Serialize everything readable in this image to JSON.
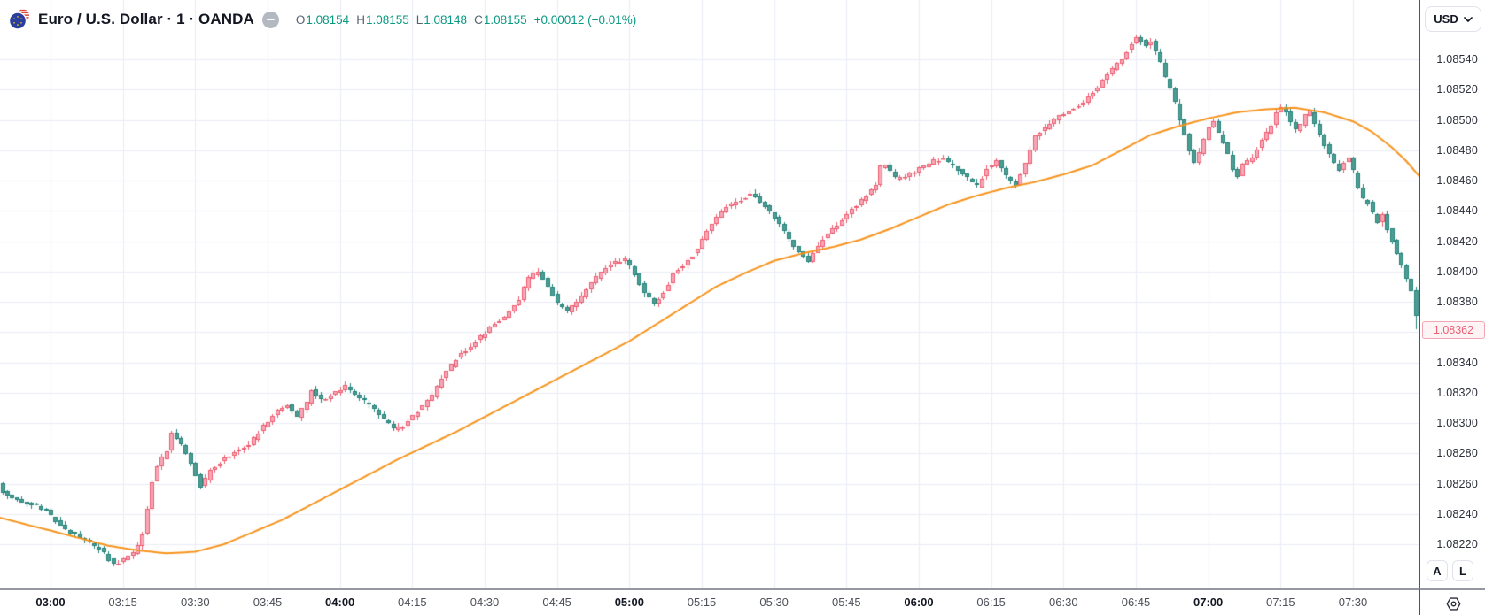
{
  "header": {
    "symbol_title": "Euro / U.S. Dollar · 1 · OANDA",
    "ohlc": {
      "open_label": "O",
      "open": "1.08154",
      "high_label": "H",
      "high": "1.08155",
      "low_label": "L",
      "low": "1.08148",
      "close_label": "C",
      "close": "1.08155",
      "change": "+0.00012 (+0.01%)"
    }
  },
  "price_axis": {
    "currency": "USD",
    "labels": [
      "1.08540",
      "1.08520",
      "1.08500",
      "1.08480",
      "1.08460",
      "1.08440",
      "1.08420",
      "1.08400",
      "1.08380",
      "1.08340",
      "1.08320",
      "1.08300",
      "1.08280",
      "1.08260",
      "1.08240",
      "1.08220"
    ],
    "last_price": "1.08362"
  },
  "time_axis": {
    "labels": [
      {
        "text": "03:00",
        "minutes": 180,
        "bold": true
      },
      {
        "text": "03:15",
        "minutes": 195,
        "bold": false
      },
      {
        "text": "03:30",
        "minutes": 210,
        "bold": false
      },
      {
        "text": "03:45",
        "minutes": 225,
        "bold": false
      },
      {
        "text": "04:00",
        "minutes": 240,
        "bold": true
      },
      {
        "text": "04:15",
        "minutes": 255,
        "bold": false
      },
      {
        "text": "04:30",
        "minutes": 270,
        "bold": false
      },
      {
        "text": "04:45",
        "minutes": 285,
        "bold": false
      },
      {
        "text": "05:00",
        "minutes": 300,
        "bold": true
      },
      {
        "text": "05:15",
        "minutes": 315,
        "bold": false
      },
      {
        "text": "05:30",
        "minutes": 330,
        "bold": false
      },
      {
        "text": "05:45",
        "minutes": 345,
        "bold": false
      },
      {
        "text": "06:00",
        "minutes": 360,
        "bold": true
      },
      {
        "text": "06:15",
        "minutes": 375,
        "bold": false
      },
      {
        "text": "06:30",
        "minutes": 390,
        "bold": false
      },
      {
        "text": "06:45",
        "minutes": 405,
        "bold": false
      },
      {
        "text": "07:00",
        "minutes": 420,
        "bold": true
      },
      {
        "text": "07:15",
        "minutes": 435,
        "bold": false
      },
      {
        "text": "07:30",
        "minutes": 450,
        "bold": false
      }
    ]
  },
  "toolbar": {
    "auto_label": "A",
    "log_label": "L"
  },
  "colors": {
    "background": "#ffffff",
    "grid": "#e9eef6",
    "up_fill": "#f6a8b6",
    "up_border": "#ee5e72",
    "down_fill": "#4d9d94",
    "down_border": "#26847b",
    "ma_line": "#f7941d",
    "ohlc_value": "#089981",
    "last_price_text": "#ee5e72",
    "last_price_bg": "#fef3f5",
    "last_price_border": "#f3a7b4"
  },
  "chart_data": {
    "type": "candlestick",
    "title": "Euro / U.S. Dollar, 1 minute, OANDA",
    "x_unit": "minutes_since_midnight",
    "x_range": [
      169,
      464
    ],
    "y_range": [
      1.0819,
      1.08575
    ],
    "price_tick_step": 0.0002,
    "price_ticks_min": 1.0822,
    "price_ticks_max": 1.0854,
    "time_ticks": [
      180,
      195,
      210,
      225,
      240,
      255,
      270,
      285,
      300,
      315,
      330,
      345,
      360,
      375,
      390,
      405,
      420,
      435,
      450
    ],
    "last_price": 1.08362,
    "seed": 42,
    "series": [
      {
        "name": "EUR/USD 1m candles",
        "style": "candles"
      },
      {
        "name": "moving average",
        "style": "line",
        "color": "#f7941d"
      }
    ],
    "price_path_anchors": [
      [
        169,
        1.08268
      ],
      [
        171,
        1.08254
      ],
      [
        174,
        1.08249
      ],
      [
        178,
        1.08246
      ],
      [
        180,
        1.08242
      ],
      [
        183,
        1.08232
      ],
      [
        186,
        1.08226
      ],
      [
        189,
        1.08221
      ],
      [
        192,
        1.08214
      ],
      [
        194,
        1.08206
      ],
      [
        196,
        1.0821
      ],
      [
        198,
        1.08214
      ],
      [
        200,
        1.08226
      ],
      [
        201,
        1.08244
      ],
      [
        202,
        1.08262
      ],
      [
        203,
        1.08272
      ],
      [
        205,
        1.08282
      ],
      [
        206,
        1.08294
      ],
      [
        208,
        1.08286
      ],
      [
        210,
        1.08274
      ],
      [
        212,
        1.08258
      ],
      [
        214,
        1.08268
      ],
      [
        217,
        1.08277
      ],
      [
        220,
        1.08282
      ],
      [
        222,
        1.08286
      ],
      [
        225,
        1.08298
      ],
      [
        228,
        1.08308
      ],
      [
        230,
        1.08312
      ],
      [
        232,
        1.08304
      ],
      [
        234,
        1.08314
      ],
      [
        235,
        1.08322
      ],
      [
        237,
        1.08315
      ],
      [
        240,
        1.0832
      ],
      [
        242,
        1.08324
      ],
      [
        244,
        1.08318
      ],
      [
        247,
        1.08312
      ],
      [
        250,
        1.08302
      ],
      [
        252,
        1.08296
      ],
      [
        254,
        1.08298
      ],
      [
        256,
        1.08305
      ],
      [
        258,
        1.08311
      ],
      [
        260,
        1.08318
      ],
      [
        262,
        1.0833
      ],
      [
        264,
        1.08338
      ],
      [
        266,
        1.08346
      ],
      [
        268,
        1.08351
      ],
      [
        270,
        1.08357
      ],
      [
        272,
        1.08363
      ],
      [
        274,
        1.08367
      ],
      [
        276,
        1.08373
      ],
      [
        278,
        1.08382
      ],
      [
        280,
        1.08396
      ],
      [
        282,
        1.084
      ],
      [
        284,
        1.0839
      ],
      [
        286,
        1.08379
      ],
      [
        288,
        1.08374
      ],
      [
        290,
        1.0838
      ],
      [
        292,
        1.08388
      ],
      [
        294,
        1.08396
      ],
      [
        296,
        1.08402
      ],
      [
        298,
        1.08406
      ],
      [
        300,
        1.08408
      ],
      [
        302,
        1.08398
      ],
      [
        304,
        1.08386
      ],
      [
        306,
        1.08378
      ],
      [
        308,
        1.08386
      ],
      [
        310,
        1.08398
      ],
      [
        312,
        1.08404
      ],
      [
        314,
        1.08411
      ],
      [
        316,
        1.08421
      ],
      [
        318,
        1.08431
      ],
      [
        320,
        1.0844
      ],
      [
        322,
        1.08444
      ],
      [
        324,
        1.08447
      ],
      [
        326,
        1.08451
      ],
      [
        328,
        1.08446
      ],
      [
        330,
        1.08439
      ],
      [
        332,
        1.08431
      ],
      [
        334,
        1.08421
      ],
      [
        336,
        1.08413
      ],
      [
        338,
        1.08407
      ],
      [
        340,
        1.08417
      ],
      [
        342,
        1.08425
      ],
      [
        344,
        1.08431
      ],
      [
        346,
        1.08438
      ],
      [
        348,
        1.08444
      ],
      [
        350,
        1.0845
      ],
      [
        352,
        1.08457
      ],
      [
        353,
        1.08469
      ],
      [
        354,
        1.08471
      ],
      [
        356,
        1.08461
      ],
      [
        358,
        1.08463
      ],
      [
        360,
        1.08466
      ],
      [
        362,
        1.0847
      ],
      [
        364,
        1.08473
      ],
      [
        366,
        1.08474
      ],
      [
        368,
        1.0847
      ],
      [
        370,
        1.08464
      ],
      [
        372,
        1.08459
      ],
      [
        373,
        1.08456
      ],
      [
        375,
        1.08468
      ],
      [
        377,
        1.08473
      ],
      [
        379,
        1.08463
      ],
      [
        381,
        1.08457
      ],
      [
        383,
        1.08471
      ],
      [
        385,
        1.08489
      ],
      [
        387,
        1.08495
      ],
      [
        389,
        1.085
      ],
      [
        391,
        1.08504
      ],
      [
        393,
        1.08508
      ],
      [
        395,
        1.08512
      ],
      [
        397,
        1.08518
      ],
      [
        399,
        1.08526
      ],
      [
        401,
        1.08533
      ],
      [
        403,
        1.08541
      ],
      [
        405,
        1.0855
      ],
      [
        406,
        1.08555
      ],
      [
        407,
        1.08552
      ],
      [
        408,
        1.08549
      ],
      [
        409,
        1.08552
      ],
      [
        410,
        1.08545
      ],
      [
        411,
        1.08537
      ],
      [
        412,
        1.08528
      ],
      [
        413,
        1.0852
      ],
      [
        414,
        1.08512
      ],
      [
        415,
        1.085
      ],
      [
        416,
        1.0849
      ],
      [
        417,
        1.0848
      ],
      [
        418,
        1.08472
      ],
      [
        419,
        1.08478
      ],
      [
        420,
        1.08487
      ],
      [
        421,
        1.08495
      ],
      [
        422,
        1.08499
      ],
      [
        423,
        1.08491
      ],
      [
        424,
        1.08485
      ],
      [
        425,
        1.08477
      ],
      [
        426,
        1.08468
      ],
      [
        427,
        1.08462
      ],
      [
        428,
        1.0847
      ],
      [
        430,
        1.08476
      ],
      [
        432,
        1.08486
      ],
      [
        434,
        1.08497
      ],
      [
        435,
        1.08504
      ],
      [
        436,
        1.08509
      ],
      [
        437,
        1.08505
      ],
      [
        438,
        1.08498
      ],
      [
        439,
        1.08493
      ],
      [
        440,
        1.08497
      ],
      [
        441,
        1.08503
      ],
      [
        442,
        1.08506
      ],
      [
        443,
        1.08498
      ],
      [
        444,
        1.08491
      ],
      [
        445,
        1.08483
      ],
      [
        446,
        1.08477
      ],
      [
        447,
        1.08471
      ],
      [
        448,
        1.08467
      ],
      [
        449,
        1.08471
      ],
      [
        450,
        1.08475
      ],
      [
        451,
        1.08466
      ],
      [
        452,
        1.08456
      ],
      [
        453,
        1.08448
      ],
      [
        454,
        1.08445
      ],
      [
        455,
        1.08438
      ],
      [
        456,
        1.08432
      ],
      [
        457,
        1.08438
      ],
      [
        458,
        1.08428
      ],
      [
        459,
        1.0842
      ],
      [
        460,
        1.08412
      ],
      [
        461,
        1.08404
      ],
      [
        462,
        1.08396
      ],
      [
        463,
        1.08388
      ],
      [
        464,
        1.0837
      ]
    ],
    "ma_anchors": [
      [
        169,
        1.08238
      ],
      [
        175,
        1.08233
      ],
      [
        180,
        1.08229
      ],
      [
        186,
        1.08224
      ],
      [
        192,
        1.08219
      ],
      [
        198,
        1.08216
      ],
      [
        204,
        1.08214
      ],
      [
        210,
        1.08215
      ],
      [
        216,
        1.0822
      ],
      [
        222,
        1.08228
      ],
      [
        228,
        1.08236
      ],
      [
        234,
        1.08246
      ],
      [
        240,
        1.08256
      ],
      [
        246,
        1.08266
      ],
      [
        252,
        1.08276
      ],
      [
        258,
        1.08285
      ],
      [
        264,
        1.08294
      ],
      [
        270,
        1.08304
      ],
      [
        276,
        1.08314
      ],
      [
        282,
        1.08324
      ],
      [
        288,
        1.08334
      ],
      [
        294,
        1.08344
      ],
      [
        300,
        1.08354
      ],
      [
        306,
        1.08366
      ],
      [
        312,
        1.08378
      ],
      [
        318,
        1.0839
      ],
      [
        324,
        1.08399
      ],
      [
        330,
        1.08407
      ],
      [
        336,
        1.08412
      ],
      [
        342,
        1.08416
      ],
      [
        348,
        1.08421
      ],
      [
        354,
        1.08428
      ],
      [
        360,
        1.08436
      ],
      [
        366,
        1.08444
      ],
      [
        372,
        1.0845
      ],
      [
        378,
        1.08455
      ],
      [
        384,
        1.08459
      ],
      [
        390,
        1.08464
      ],
      [
        396,
        1.0847
      ],
      [
        402,
        1.0848
      ],
      [
        408,
        1.0849
      ],
      [
        414,
        1.08496
      ],
      [
        420,
        1.08501
      ],
      [
        426,
        1.08505
      ],
      [
        432,
        1.08507
      ],
      [
        438,
        1.08508
      ],
      [
        444,
        1.08505
      ],
      [
        450,
        1.08499
      ],
      [
        454,
        1.08492
      ],
      [
        458,
        1.08482
      ],
      [
        461,
        1.08473
      ],
      [
        464,
        1.08462
      ]
    ]
  }
}
